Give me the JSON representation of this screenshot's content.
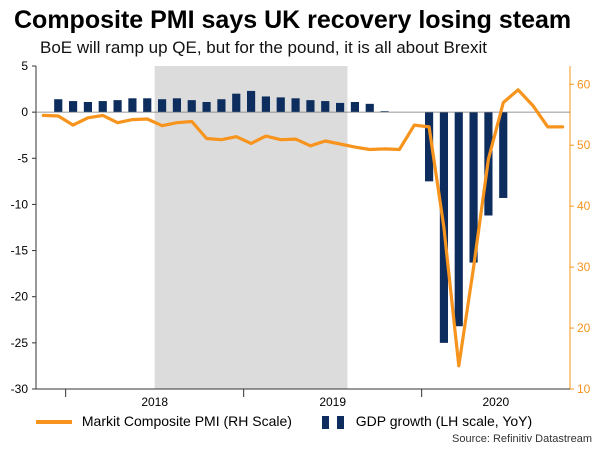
{
  "title": "Composite PMI says UK recovery losing steam",
  "subtitle": "BoE will ramp up QE, but for the pound, it is all about Brexit",
  "source": "Source: Refinitiv Datastream",
  "colors": {
    "gdp": "#0C2D5E",
    "pmi": "#F7941D",
    "shade": "#DCDCDC",
    "axis": "#000000"
  },
  "chart_data": {
    "type": "bar+line",
    "x_period": [
      "2017-11",
      "2020-10"
    ],
    "shaded_period": [
      "2018-07",
      "2019-07"
    ],
    "x_tick_labels": [
      "2018",
      "2019",
      "2020"
    ],
    "left_axis": {
      "label": "GDP growth (LH scale, YoY)",
      "ylim": [
        -30,
        5
      ],
      "ticks": [
        5,
        0,
        -5,
        -10,
        -15,
        -20,
        -25,
        -30
      ]
    },
    "right_axis": {
      "label": "Markit Composite PMI (RH Scale)",
      "ylim": [
        10,
        63
      ],
      "ticks": [
        60,
        50,
        40,
        30,
        20,
        10
      ]
    },
    "series": [
      {
        "name": "GDP growth (LH scale, YoY)",
        "type": "bar",
        "axis": "left",
        "x": [
          "2017-12",
          "2018-01",
          "2018-02",
          "2018-03",
          "2018-04",
          "2018-05",
          "2018-06",
          "2018-07",
          "2018-08",
          "2018-09",
          "2018-10",
          "2018-11",
          "2018-12",
          "2019-01",
          "2019-02",
          "2019-03",
          "2019-04",
          "2019-05",
          "2019-06",
          "2019-07",
          "2019-08",
          "2019-09",
          "2019-10",
          "2019-11",
          "2019-12",
          "2020-01",
          "2020-02",
          "2020-03",
          "2020-04",
          "2020-05",
          "2020-06",
          "2020-07",
          "2020-08",
          "2020-09"
        ],
        "values": [
          1.4,
          1.2,
          1.1,
          1.2,
          1.3,
          1.5,
          1.5,
          1.4,
          1.5,
          1.3,
          1.1,
          1.4,
          2.0,
          2.3,
          1.7,
          1.6,
          1.5,
          1.3,
          1.2,
          1.0,
          1.1,
          0.9,
          0.1,
          0.0,
          0.0,
          -7.5,
          -25.0,
          -23.2,
          -16.3,
          -11.2,
          -9.3,
          0.0,
          0.0,
          0.0
        ]
      },
      {
        "name": "Markit Composite PMI (RH Scale)",
        "type": "line",
        "axis": "right",
        "x": [
          "2017-11",
          "2017-12",
          "2018-01",
          "2018-02",
          "2018-03",
          "2018-04",
          "2018-05",
          "2018-06",
          "2018-07",
          "2018-08",
          "2018-09",
          "2018-10",
          "2018-11",
          "2018-12",
          "2019-01",
          "2019-02",
          "2019-03",
          "2019-04",
          "2019-05",
          "2019-06",
          "2019-07",
          "2019-08",
          "2019-09",
          "2019-10",
          "2019-11",
          "2019-12",
          "2020-01",
          "2020-02",
          "2020-03",
          "2020-04",
          "2020-05",
          "2020-06",
          "2020-07",
          "2020-08",
          "2020-09",
          "2020-10"
        ],
        "values": [
          54.9,
          54.8,
          53.3,
          54.5,
          54.9,
          53.7,
          54.2,
          54.3,
          53.2,
          53.7,
          53.9,
          51.1,
          50.9,
          51.4,
          50.3,
          51.5,
          50.9,
          51.0,
          49.9,
          50.7,
          50.2,
          49.7,
          49.3,
          49.4,
          49.3,
          53.3,
          53.0,
          36.5,
          13.8,
          30.0,
          47.7,
          57.0,
          59.1,
          56.5,
          53.0,
          53.0
        ]
      }
    ]
  },
  "legend": {
    "pmi_label": "Markit Composite PMI (RH Scale)",
    "gdp_label": "GDP growth (LH scale, YoY)"
  }
}
